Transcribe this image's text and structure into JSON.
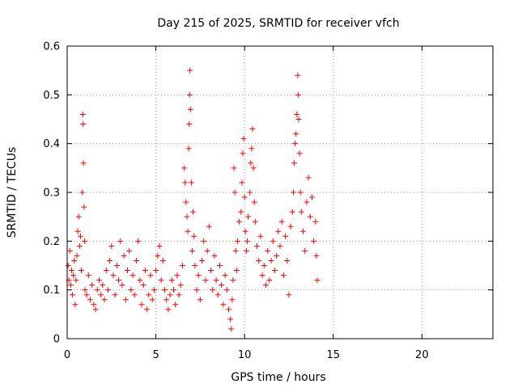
{
  "chart_data": {
    "type": "scatter",
    "title": "Day 215 of 2025, SRMTID for receiver vfch",
    "xlabel": "GPS time / hours",
    "ylabel": "SRMTID / TECUs",
    "xlim": [
      0,
      24
    ],
    "ylim": [
      0,
      0.6
    ],
    "xticks": [
      0,
      5,
      10,
      15,
      20
    ],
    "xtick_labels": [
      "0",
      "5",
      "10",
      "15",
      "20"
    ],
    "yticks": [
      0,
      0.1,
      0.2,
      0.3,
      0.4,
      0.5,
      0.6
    ],
    "ytick_labels": [
      "0",
      "0.1",
      "0.2",
      "0.3",
      "0.4",
      "0.5",
      "0.6"
    ],
    "grid": true,
    "marker": "+",
    "color": "#ff0000",
    "series": [
      {
        "name": "SRMTID",
        "points": [
          [
            0.05,
            0.15
          ],
          [
            0.1,
            0.12
          ],
          [
            0.15,
            0.18
          ],
          [
            0.2,
            0.11
          ],
          [
            0.25,
            0.14
          ],
          [
            0.3,
            0.09
          ],
          [
            0.35,
            0.13
          ],
          [
            0.4,
            0.16
          ],
          [
            0.45,
            0.07
          ],
          [
            0.5,
            0.12
          ],
          [
            0.55,
            0.17
          ],
          [
            0.6,
            0.22
          ],
          [
            0.65,
            0.25
          ],
          [
            0.7,
            0.19
          ],
          [
            0.75,
            0.21
          ],
          [
            0.8,
            0.14
          ],
          [
            0.85,
            0.3
          ],
          [
            0.88,
            0.46
          ],
          [
            0.9,
            0.44
          ],
          [
            0.92,
            0.36
          ],
          [
            0.95,
            0.27
          ],
          [
            0.98,
            0.2
          ],
          [
            1.0,
            0.1
          ],
          [
            1.1,
            0.09
          ],
          [
            1.2,
            0.13
          ],
          [
            1.3,
            0.08
          ],
          [
            1.4,
            0.11
          ],
          [
            1.5,
            0.07
          ],
          [
            1.6,
            0.06
          ],
          [
            1.7,
            0.1
          ],
          [
            1.8,
            0.12
          ],
          [
            1.9,
            0.09
          ],
          [
            2.0,
            0.11
          ],
          [
            2.1,
            0.08
          ],
          [
            2.2,
            0.14
          ],
          [
            2.3,
            0.1
          ],
          [
            2.4,
            0.16
          ],
          [
            2.5,
            0.19
          ],
          [
            2.6,
            0.13
          ],
          [
            2.7,
            0.09
          ],
          [
            2.8,
            0.15
          ],
          [
            2.9,
            0.12
          ],
          [
            3.0,
            0.2
          ],
          [
            3.1,
            0.11
          ],
          [
            3.2,
            0.17
          ],
          [
            3.3,
            0.08
          ],
          [
            3.4,
            0.14
          ],
          [
            3.5,
            0.18
          ],
          [
            3.6,
            0.1
          ],
          [
            3.7,
            0.13
          ],
          [
            3.8,
            0.09
          ],
          [
            3.9,
            0.16
          ],
          [
            4.0,
            0.2
          ],
          [
            4.1,
            0.12
          ],
          [
            4.2,
            0.07
          ],
          [
            4.3,
            0.11
          ],
          [
            4.4,
            0.14
          ],
          [
            4.5,
            0.06
          ],
          [
            4.6,
            0.09
          ],
          [
            4.7,
            0.13
          ],
          [
            4.8,
            0.08
          ],
          [
            4.9,
            0.1
          ],
          [
            5.0,
            0.14
          ],
          [
            5.1,
            0.17
          ],
          [
            5.2,
            0.19
          ],
          [
            5.3,
            0.12
          ],
          [
            5.4,
            0.16
          ],
          [
            5.5,
            0.1
          ],
          [
            5.6,
            0.08
          ],
          [
            5.7,
            0.06
          ],
          [
            5.8,
            0.09
          ],
          [
            5.9,
            0.12
          ],
          [
            6.0,
            0.1
          ],
          [
            6.1,
            0.07
          ],
          [
            6.2,
            0.13
          ],
          [
            6.3,
            0.09
          ],
          [
            6.4,
            0.11
          ],
          [
            6.5,
            0.15
          ],
          [
            6.6,
            0.35
          ],
          [
            6.65,
            0.32
          ],
          [
            6.7,
            0.28
          ],
          [
            6.75,
            0.25
          ],
          [
            6.8,
            0.22
          ],
          [
            6.85,
            0.39
          ],
          [
            6.88,
            0.44
          ],
          [
            6.9,
            0.5
          ],
          [
            6.92,
            0.55
          ],
          [
            6.95,
            0.47
          ],
          [
            7.0,
            0.32
          ],
          [
            7.05,
            0.18
          ],
          [
            7.1,
            0.26
          ],
          [
            7.15,
            0.21
          ],
          [
            7.2,
            0.15
          ],
          [
            7.3,
            0.1
          ],
          [
            7.4,
            0.13
          ],
          [
            7.5,
            0.08
          ],
          [
            7.6,
            0.16
          ],
          [
            7.7,
            0.2
          ],
          [
            7.8,
            0.12
          ],
          [
            7.9,
            0.18
          ],
          [
            8.0,
            0.23
          ],
          [
            8.1,
            0.14
          ],
          [
            8.2,
            0.1
          ],
          [
            8.3,
            0.17
          ],
          [
            8.4,
            0.12
          ],
          [
            8.5,
            0.09
          ],
          [
            8.6,
            0.15
          ],
          [
            8.7,
            0.11
          ],
          [
            8.8,
            0.07
          ],
          [
            8.9,
            0.13
          ],
          [
            9.0,
            0.1
          ],
          [
            9.1,
            0.06
          ],
          [
            9.2,
            0.04
          ],
          [
            9.25,
            0.02
          ],
          [
            9.3,
            0.08
          ],
          [
            9.35,
            0.12
          ],
          [
            9.4,
            0.35
          ],
          [
            9.45,
            0.3
          ],
          [
            9.5,
            0.18
          ],
          [
            9.55,
            0.14
          ],
          [
            9.6,
            0.2
          ],
          [
            9.7,
            0.24
          ],
          [
            9.8,
            0.26
          ],
          [
            9.85,
            0.32
          ],
          [
            9.9,
            0.38
          ],
          [
            9.95,
            0.41
          ],
          [
            10.0,
            0.29
          ],
          [
            10.05,
            0.22
          ],
          [
            10.1,
            0.18
          ],
          [
            10.15,
            0.2
          ],
          [
            10.2,
            0.25
          ],
          [
            10.3,
            0.3
          ],
          [
            10.35,
            0.36
          ],
          [
            10.4,
            0.39
          ],
          [
            10.45,
            0.43
          ],
          [
            10.5,
            0.35
          ],
          [
            10.55,
            0.28
          ],
          [
            10.6,
            0.24
          ],
          [
            10.7,
            0.19
          ],
          [
            10.8,
            0.16
          ],
          [
            10.9,
            0.21
          ],
          [
            11.0,
            0.13
          ],
          [
            11.1,
            0.15
          ],
          [
            11.2,
            0.11
          ],
          [
            11.3,
            0.18
          ],
          [
            11.4,
            0.12
          ],
          [
            11.5,
            0.16
          ],
          [
            11.6,
            0.2
          ],
          [
            11.7,
            0.14
          ],
          [
            11.8,
            0.17
          ],
          [
            11.9,
            0.22
          ],
          [
            12.0,
            0.19
          ],
          [
            12.1,
            0.24
          ],
          [
            12.2,
            0.13
          ],
          [
            12.3,
            0.21
          ],
          [
            12.4,
            0.16
          ],
          [
            12.5,
            0.09
          ],
          [
            12.6,
            0.23
          ],
          [
            12.7,
            0.26
          ],
          [
            12.75,
            0.3
          ],
          [
            12.8,
            0.36
          ],
          [
            12.85,
            0.4
          ],
          [
            12.9,
            0.42
          ],
          [
            12.95,
            0.46
          ],
          [
            13.0,
            0.54
          ],
          [
            13.02,
            0.5
          ],
          [
            13.05,
            0.45
          ],
          [
            13.1,
            0.38
          ],
          [
            13.15,
            0.3
          ],
          [
            13.2,
            0.26
          ],
          [
            13.3,
            0.22
          ],
          [
            13.4,
            0.18
          ],
          [
            13.5,
            0.28
          ],
          [
            13.6,
            0.33
          ],
          [
            13.7,
            0.25
          ],
          [
            13.8,
            0.29
          ],
          [
            13.9,
            0.2
          ],
          [
            14.0,
            0.24
          ],
          [
            14.05,
            0.17
          ],
          [
            14.1,
            0.12
          ]
        ]
      }
    ]
  }
}
